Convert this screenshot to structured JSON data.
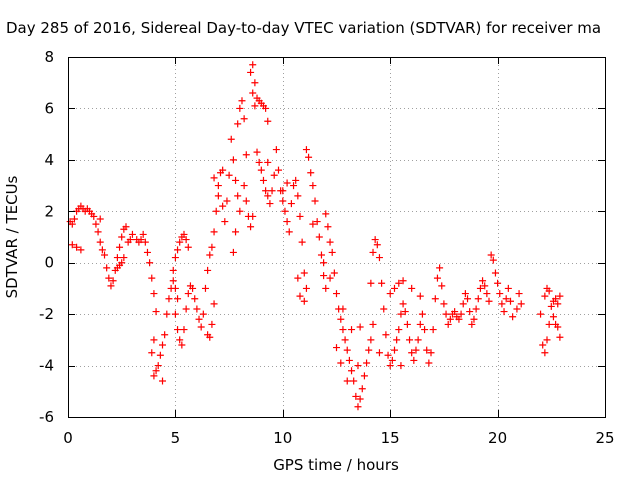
{
  "chart_data": {
    "type": "scatter",
    "title": "Day 285 of 2016, Sidereal Day-to-day VTEC variation (SDTVAR) for receiver ma",
    "xlabel": "GPS time / hours",
    "ylabel": "SDTVAR / TECUs",
    "xlim": [
      0,
      25
    ],
    "ylim": [
      -6,
      8
    ],
    "xticks": [
      0,
      5,
      10,
      15,
      20,
      25
    ],
    "yticks": [
      -6,
      -4,
      -2,
      0,
      2,
      4,
      6,
      8
    ],
    "xtick_labels": [
      "0",
      "5",
      "10",
      "15",
      "20",
      "25"
    ],
    "ytick_labels": [
      "-6",
      "-4",
      "-2",
      "0",
      "2",
      "4",
      "6",
      "8"
    ],
    "grid": true,
    "marker": "+",
    "color": "#ff0000",
    "series": [
      {
        "points": [
          [
            0.1,
            1.6
          ],
          [
            0.2,
            1.5
          ],
          [
            0.3,
            1.7
          ],
          [
            0.4,
            2.0
          ],
          [
            0.5,
            2.1
          ],
          [
            0.6,
            2.2
          ],
          [
            0.7,
            2.1
          ],
          [
            0.8,
            2.0
          ],
          [
            0.9,
            2.1
          ],
          [
            1.0,
            2.0
          ],
          [
            1.1,
            1.9
          ],
          [
            1.2,
            1.8
          ],
          [
            1.3,
            1.5
          ],
          [
            1.4,
            1.2
          ],
          [
            1.5,
            0.8
          ],
          [
            1.6,
            0.5
          ],
          [
            1.5,
            1.7
          ],
          [
            0.2,
            0.7
          ],
          [
            0.4,
            0.6
          ],
          [
            0.6,
            0.5
          ],
          [
            1.7,
            0.3
          ],
          [
            1.8,
            -0.2
          ],
          [
            1.9,
            -0.6
          ],
          [
            2.0,
            -0.9
          ],
          [
            2.1,
            -0.7
          ],
          [
            2.2,
            -0.3
          ],
          [
            2.3,
            0.2
          ],
          [
            2.4,
            0.6
          ],
          [
            2.5,
            1.0
          ],
          [
            2.6,
            1.3
          ],
          [
            2.7,
            1.4
          ],
          [
            2.3,
            -0.2
          ],
          [
            2.4,
            -0.1
          ],
          [
            2.5,
            0.0
          ],
          [
            2.6,
            0.2
          ],
          [
            2.8,
            0.8
          ],
          [
            2.9,
            0.9
          ],
          [
            3.0,
            1.1
          ],
          [
            3.2,
            0.9
          ],
          [
            3.3,
            0.8
          ],
          [
            3.4,
            0.9
          ],
          [
            3.5,
            1.1
          ],
          [
            3.6,
            0.8
          ],
          [
            3.7,
            0.4
          ],
          [
            3.8,
            0.0
          ],
          [
            3.9,
            -0.6
          ],
          [
            4.0,
            -1.2
          ],
          [
            4.1,
            -1.9
          ],
          [
            4.0,
            -3.0
          ],
          [
            3.9,
            -3.5
          ],
          [
            4.0,
            -4.4
          ],
          [
            4.1,
            -4.2
          ],
          [
            4.2,
            -4.0
          ],
          [
            4.3,
            -3.6
          ],
          [
            4.4,
            -3.2
          ],
          [
            4.4,
            -4.6
          ],
          [
            4.5,
            -2.8
          ],
          [
            4.6,
            -2.0
          ],
          [
            4.7,
            -1.4
          ],
          [
            4.8,
            -1.0
          ],
          [
            4.9,
            -0.7
          ],
          [
            5.0,
            -1.0
          ],
          [
            5.1,
            -1.4
          ],
          [
            4.9,
            -0.3
          ],
          [
            5.0,
            0.2
          ],
          [
            5.1,
            0.5
          ],
          [
            5.2,
            0.8
          ],
          [
            5.3,
            1.0
          ],
          [
            5.4,
            1.1
          ],
          [
            5.5,
            0.9
          ],
          [
            5.6,
            0.6
          ],
          [
            5.0,
            -2.0
          ],
          [
            5.1,
            -2.6
          ],
          [
            5.2,
            -3.0
          ],
          [
            5.3,
            -3.2
          ],
          [
            5.4,
            -2.6
          ],
          [
            5.5,
            -1.8
          ],
          [
            5.6,
            -1.2
          ],
          [
            5.7,
            -0.9
          ],
          [
            5.8,
            -1.0
          ],
          [
            5.9,
            -1.4
          ],
          [
            6.0,
            -1.8
          ],
          [
            6.1,
            -2.2
          ],
          [
            6.2,
            -2.5
          ],
          [
            6.3,
            -2.0
          ],
          [
            6.4,
            -1.0
          ],
          [
            6.5,
            -0.3
          ],
          [
            6.6,
            0.3
          ],
          [
            6.5,
            -2.8
          ],
          [
            6.6,
            -2.9
          ],
          [
            6.7,
            -2.4
          ],
          [
            6.8,
            -1.6
          ],
          [
            6.7,
            0.6
          ],
          [
            6.8,
            1.2
          ],
          [
            6.9,
            2.0
          ],
          [
            7.0,
            3.0
          ],
          [
            7.1,
            3.5
          ],
          [
            6.8,
            3.3
          ],
          [
            7.0,
            2.6
          ],
          [
            7.2,
            2.2
          ],
          [
            7.3,
            1.6
          ],
          [
            7.4,
            2.4
          ],
          [
            7.5,
            3.4
          ],
          [
            7.6,
            4.8
          ],
          [
            7.7,
            4.0
          ],
          [
            7.8,
            3.2
          ],
          [
            7.9,
            2.6
          ],
          [
            8.0,
            2.0
          ],
          [
            7.8,
            1.2
          ],
          [
            7.7,
            0.4
          ],
          [
            7.9,
            5.4
          ],
          [
            8.0,
            6.0
          ],
          [
            8.1,
            6.3
          ],
          [
            8.2,
            5.6
          ],
          [
            8.3,
            4.2
          ],
          [
            8.2,
            3.0
          ],
          [
            8.3,
            2.4
          ],
          [
            8.4,
            1.8
          ],
          [
            8.5,
            1.4
          ],
          [
            8.6,
            1.8
          ],
          [
            8.6,
            7.7
          ],
          [
            8.5,
            7.4
          ],
          [
            8.7,
            7.0
          ],
          [
            8.6,
            6.6
          ],
          [
            8.7,
            6.1
          ],
          [
            8.8,
            6.4
          ],
          [
            8.9,
            6.3
          ],
          [
            9.0,
            6.2
          ],
          [
            9.1,
            6.1
          ],
          [
            9.2,
            6.0
          ],
          [
            9.3,
            5.5
          ],
          [
            8.9,
            3.9
          ],
          [
            9.0,
            3.6
          ],
          [
            9.1,
            3.2
          ],
          [
            9.2,
            2.8
          ],
          [
            9.3,
            2.6
          ],
          [
            9.4,
            2.3
          ],
          [
            9.5,
            2.8
          ],
          [
            9.6,
            3.4
          ],
          [
            9.7,
            4.4
          ],
          [
            9.8,
            3.6
          ],
          [
            9.9,
            2.8
          ],
          [
            10.0,
            2.4
          ],
          [
            10.1,
            2.0
          ],
          [
            10.2,
            1.6
          ],
          [
            10.3,
            1.2
          ],
          [
            10.4,
            2.3
          ],
          [
            10.5,
            3.0
          ],
          [
            10.6,
            3.2
          ],
          [
            10.7,
            2.6
          ],
          [
            10.8,
            1.8
          ],
          [
            10.9,
            0.8
          ],
          [
            11.0,
            -0.4
          ],
          [
            11.1,
            -1.0
          ],
          [
            10.7,
            -0.6
          ],
          [
            10.8,
            -1.3
          ],
          [
            11.0,
            -1.5
          ],
          [
            11.1,
            4.4
          ],
          [
            11.2,
            4.1
          ],
          [
            11.3,
            3.5
          ],
          [
            11.4,
            3.0
          ],
          [
            11.5,
            2.4
          ],
          [
            11.6,
            1.6
          ],
          [
            11.7,
            1.0
          ],
          [
            11.8,
            0.3
          ],
          [
            11.9,
            -0.5
          ],
          [
            12.0,
            -1.0
          ],
          [
            12.0,
            1.9
          ],
          [
            12.1,
            1.4
          ],
          [
            12.2,
            0.8
          ],
          [
            12.3,
            0.4
          ],
          [
            12.4,
            -0.4
          ],
          [
            12.5,
            -1.2
          ],
          [
            12.6,
            -1.8
          ],
          [
            12.7,
            -2.2
          ],
          [
            12.8,
            -2.6
          ],
          [
            12.9,
            -3.0
          ],
          [
            13.0,
            -3.4
          ],
          [
            13.1,
            -3.8
          ],
          [
            13.2,
            -4.2
          ],
          [
            13.3,
            -4.6
          ],
          [
            13.4,
            -5.2
          ],
          [
            13.5,
            -5.6
          ],
          [
            13.6,
            -5.3
          ],
          [
            13.7,
            -4.9
          ],
          [
            13.8,
            -4.4
          ],
          [
            13.9,
            -3.9
          ],
          [
            14.0,
            -3.4
          ],
          [
            14.1,
            -3.0
          ],
          [
            14.2,
            -2.4
          ],
          [
            14.1,
            -0.8
          ],
          [
            14.2,
            0.4
          ],
          [
            14.3,
            0.9
          ],
          [
            14.4,
            0.7
          ],
          [
            14.5,
            0.2
          ],
          [
            14.6,
            -0.8
          ],
          [
            14.7,
            -1.8
          ],
          [
            14.8,
            -2.8
          ],
          [
            14.9,
            -3.6
          ],
          [
            15.0,
            -4.0
          ],
          [
            15.1,
            -3.8
          ],
          [
            15.2,
            -3.4
          ],
          [
            15.3,
            -3.0
          ],
          [
            15.4,
            -2.6
          ],
          [
            15.5,
            -2.0
          ],
          [
            15.6,
            -1.6
          ],
          [
            15.7,
            -1.9
          ],
          [
            15.8,
            -2.4
          ],
          [
            15.9,
            -3.0
          ],
          [
            16.0,
            -3.5
          ],
          [
            16.1,
            -3.8
          ],
          [
            16.2,
            -3.4
          ],
          [
            16.3,
            -3.0
          ],
          [
            16.4,
            -2.4
          ],
          [
            16.5,
            -2.0
          ],
          [
            16.6,
            -2.6
          ],
          [
            16.7,
            -3.4
          ],
          [
            16.8,
            -3.9
          ],
          [
            16.9,
            -3.5
          ],
          [
            17.0,
            -2.6
          ],
          [
            17.1,
            -1.4
          ],
          [
            17.2,
            -0.6
          ],
          [
            17.3,
            -0.2
          ],
          [
            17.4,
            -0.9
          ],
          [
            17.5,
            -1.6
          ],
          [
            17.6,
            -2.0
          ],
          [
            17.7,
            -2.4
          ],
          [
            17.8,
            -2.2
          ],
          [
            17.9,
            -2.0
          ],
          [
            18.0,
            -1.9
          ],
          [
            18.1,
            -2.1
          ],
          [
            18.2,
            -2.2
          ],
          [
            18.3,
            -2.0
          ],
          [
            18.4,
            -1.6
          ],
          [
            18.5,
            -1.2
          ],
          [
            18.6,
            -1.4
          ],
          [
            18.7,
            -1.9
          ],
          [
            18.8,
            -2.4
          ],
          [
            18.9,
            -2.2
          ],
          [
            19.0,
            -1.8
          ],
          [
            19.1,
            -1.4
          ],
          [
            19.2,
            -1.0
          ],
          [
            19.3,
            -0.7
          ],
          [
            19.4,
            -0.9
          ],
          [
            19.5,
            -1.2
          ],
          [
            19.6,
            -1.5
          ],
          [
            19.7,
            0.3
          ],
          [
            19.8,
            0.1
          ],
          [
            19.9,
            -0.4
          ],
          [
            20.0,
            -0.8
          ],
          [
            20.1,
            -1.2
          ],
          [
            20.2,
            -1.6
          ],
          [
            20.3,
            -1.9
          ],
          [
            20.4,
            -1.4
          ],
          [
            20.5,
            -1.0
          ],
          [
            20.6,
            -1.5
          ],
          [
            20.7,
            -2.1
          ],
          [
            20.9,
            -1.8
          ],
          [
            21.0,
            -1.2
          ],
          [
            21.1,
            -1.6
          ],
          [
            22.0,
            -2.0
          ],
          [
            22.1,
            -3.2
          ],
          [
            22.2,
            -3.5
          ],
          [
            22.3,
            -3.0
          ],
          [
            22.4,
            -2.4
          ],
          [
            22.2,
            -1.3
          ],
          [
            22.3,
            -1.0
          ],
          [
            22.4,
            -1.1
          ],
          [
            22.5,
            -1.7
          ],
          [
            22.6,
            -2.1
          ],
          [
            22.7,
            -2.4
          ],
          [
            22.8,
            -2.5
          ],
          [
            22.9,
            -2.9
          ],
          [
            22.6,
            -1.5
          ],
          [
            22.7,
            -1.4
          ],
          [
            22.8,
            -1.6
          ],
          [
            22.9,
            -1.3
          ],
          [
            15.0,
            -1.2
          ],
          [
            15.2,
            -1.0
          ],
          [
            15.4,
            -0.8
          ],
          [
            15.6,
            -0.7
          ],
          [
            16.0,
            -1.0
          ],
          [
            16.4,
            -1.3
          ],
          [
            12.5,
            -3.3
          ],
          [
            12.7,
            -3.9
          ],
          [
            13.0,
            -4.6
          ],
          [
            13.5,
            -4.0
          ],
          [
            14.5,
            -3.5
          ],
          [
            15.5,
            -4.0
          ],
          [
            13.2,
            -2.6
          ],
          [
            12.8,
            -1.8
          ],
          [
            7.2,
            3.6
          ],
          [
            8.8,
            4.3
          ],
          [
            9.3,
            3.9
          ],
          [
            10.0,
            2.8
          ],
          [
            10.2,
            3.1
          ],
          [
            11.4,
            1.5
          ],
          [
            11.9,
            0.0
          ],
          [
            12.2,
            -0.6
          ],
          [
            13.6,
            -2.5
          ]
        ]
      }
    ]
  }
}
